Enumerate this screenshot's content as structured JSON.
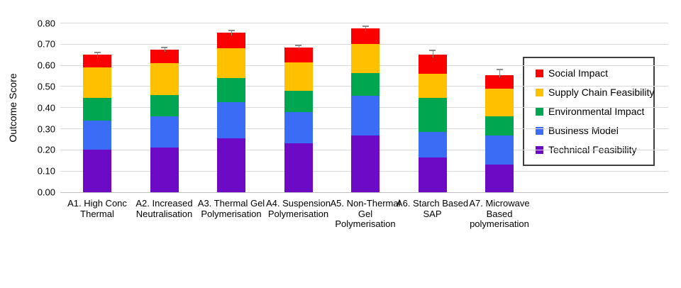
{
  "chart_data": {
    "type": "bar",
    "stacked": true,
    "title": "",
    "xlabel": "",
    "ylabel": "Outcome Score",
    "ylim": [
      0,
      0.8
    ],
    "ytick_step": 0.1,
    "ytick_labels": [
      "0.00",
      "0.10",
      "0.20",
      "0.30",
      "0.40",
      "0.50",
      "0.60",
      "0.70",
      "0.80"
    ],
    "grid": "horizontal",
    "categories": [
      "A1. High Conc\nThermal",
      "A2. Increased\nNeutralisation",
      "A3. Thermal Gel\nPolymerisation",
      "A4. Suspension\nPolymerisation",
      "A5. Non-Thermal\nGel\nPolymerisation",
      "A6. Starch Based\nSAP",
      "A7. Microwave\nBased\npolymerisation"
    ],
    "series": [
      {
        "name": "Technical Feasibility",
        "color": "#6d0ac5",
        "values": [
          0.2,
          0.21,
          0.255,
          0.23,
          0.27,
          0.165,
          0.13
        ]
      },
      {
        "name": "Business Model",
        "color": "#3b6cf6",
        "values": [
          0.14,
          0.15,
          0.17,
          0.15,
          0.185,
          0.12,
          0.14
        ]
      },
      {
        "name": "Environmental Impact",
        "color": "#00a650",
        "values": [
          0.105,
          0.1,
          0.115,
          0.1,
          0.11,
          0.16,
          0.09
        ]
      },
      {
        "name": "Supply Chain Feasibility",
        "color": "#ffc000",
        "values": [
          0.145,
          0.15,
          0.14,
          0.135,
          0.135,
          0.115,
          0.13
        ]
      },
      {
        "name": "Social Impact",
        "color": "#fa0000",
        "values": [
          0.06,
          0.065,
          0.075,
          0.07,
          0.075,
          0.09,
          0.065
        ]
      }
    ],
    "totals": [
      0.65,
      0.675,
      0.755,
      0.685,
      0.775,
      0.65,
      0.555
    ],
    "error_bar_tops": [
      0.66,
      0.685,
      0.765,
      0.695,
      0.785,
      0.67,
      0.58
    ],
    "legend": {
      "position": "right-inside",
      "entries": [
        {
          "label": "Social Impact",
          "color": "#fa0000"
        },
        {
          "label": "Supply Chain Feasibility",
          "color": "#ffc000"
        },
        {
          "label": "Environmental Impact",
          "color": "#00a650"
        },
        {
          "label": "Business Model",
          "color": "#3b6cf6"
        },
        {
          "label": "Technical Feasibility",
          "color": "#6d0ac5"
        }
      ]
    },
    "colors": {
      "gridline": "#d9d9d9",
      "baseline": "#bfbfbf",
      "error_bar": "#8c8c8c",
      "legend_border": "#3f3f3f",
      "text": "#000000"
    }
  }
}
